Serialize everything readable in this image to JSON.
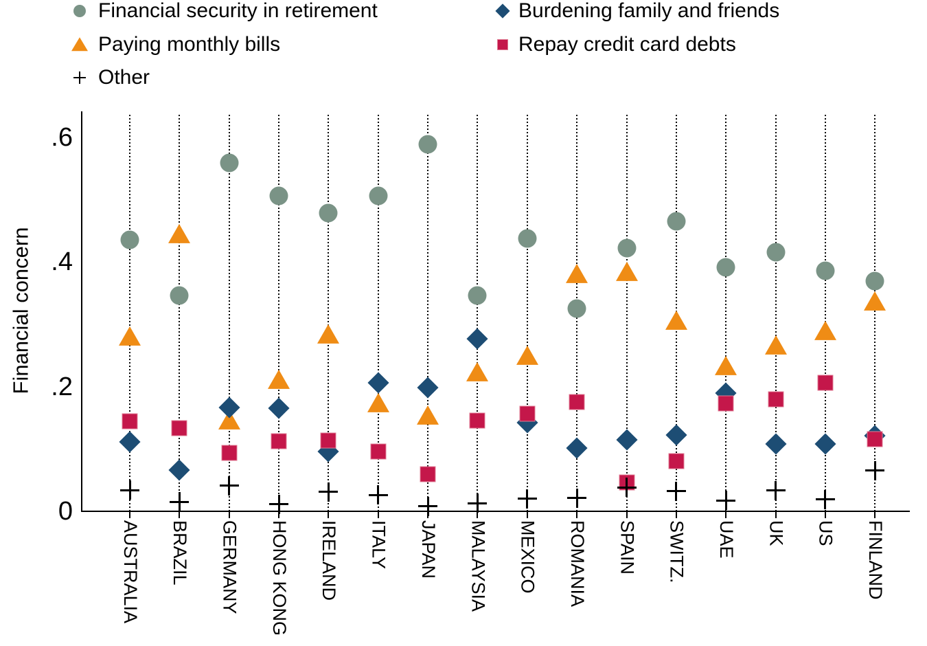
{
  "chart_data": {
    "type": "scatter",
    "title": "",
    "ylabel": "Financial concern",
    "xlabel": "",
    "ylim": [
      0,
      0.65
    ],
    "grid": "dotted vertical gridline at each category",
    "legend_position": "top, two columns",
    "yticks": [
      {
        "label": "0",
        "value": 0
      },
      {
        "label": ".2",
        "value": 0.2
      },
      {
        "label": ".4",
        "value": 0.4
      },
      {
        "label": ".6",
        "value": 0.6
      }
    ],
    "categories": [
      "AUSTRALIA",
      "BRAZIL",
      "GERMANY",
      "HONG KONG",
      "IRELAND",
      "ITALY",
      "JAPAN",
      "MALAYSIA",
      "MEXICO",
      "ROMANIA",
      "SPAIN",
      "SWITZ.",
      "UAE",
      "UK",
      "US",
      "FINLAND"
    ],
    "series": [
      {
        "name": "Financial security in retirement",
        "marker": "circle",
        "color": "#7a9386",
        "values": [
          0.435,
          0.345,
          0.558,
          0.505,
          0.478,
          0.505,
          0.588,
          0.345,
          0.437,
          0.324,
          0.421,
          0.464,
          0.39,
          0.415,
          0.385,
          0.368
        ]
      },
      {
        "name": "Paying monthly bills",
        "marker": "triangle",
        "color": "#ef8c15",
        "values": [
          0.279,
          0.444,
          0.145,
          0.21,
          0.282,
          0.172,
          0.152,
          0.222,
          0.248,
          0.379,
          0.383,
          0.305,
          0.232,
          0.265,
          0.288,
          0.335
        ]
      },
      {
        "name": "Burdening family and friends",
        "marker": "diamond",
        "color": "#1d4d74",
        "values": [
          0.11,
          0.065,
          0.166,
          0.164,
          0.095,
          0.205,
          0.197,
          0.276,
          0.141,
          0.1,
          0.114,
          0.121,
          0.189,
          0.107,
          0.107,
          0.12
        ]
      },
      {
        "name": "Repay credit card debts",
        "marker": "square",
        "color": "#c4174a",
        "border_color": "#e07d95",
        "values": [
          0.143,
          0.132,
          0.093,
          0.111,
          0.113,
          0.095,
          0.059,
          0.145,
          0.155,
          0.174,
          0.045,
          0.079,
          0.172,
          0.179,
          0.205,
          0.115
        ]
      },
      {
        "name": "Other",
        "marker": "plus",
        "color": "#000000",
        "values": [
          0.033,
          0.014,
          0.04,
          0.01,
          0.03,
          0.025,
          0.007,
          0.012,
          0.019,
          0.02,
          0.037,
          0.031,
          0.016,
          0.032,
          0.018,
          0.064
        ]
      }
    ],
    "legend_columns": [
      [
        0,
        1,
        4
      ],
      [
        2,
        3
      ]
    ],
    "axis_color": "#000000"
  }
}
